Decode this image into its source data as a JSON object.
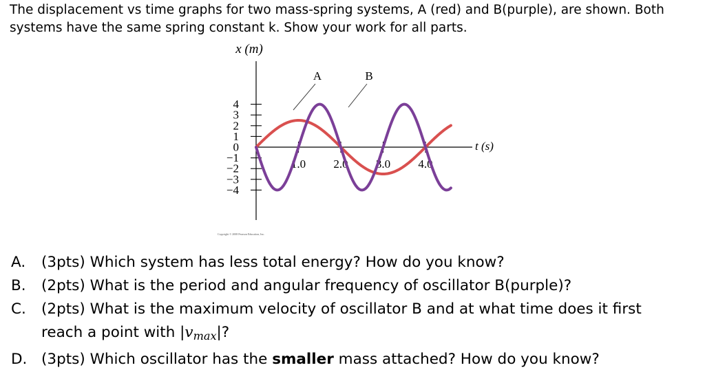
{
  "intro": {
    "line1": "The displacement vs time graphs for two mass-spring systems, A (red) and B(purple), are shown.  Both",
    "line2": "systems have the same spring constant k.  Show your work for all parts."
  },
  "chart_data": {
    "type": "line",
    "ylabel": "x (m)",
    "xlabel": "t (s)",
    "y_ticks": [
      "4",
      "3",
      "2",
      "1",
      "0",
      "−1",
      "−2",
      "−3",
      "−4"
    ],
    "y_tick_values": [
      4,
      3,
      2,
      1,
      0,
      -1,
      -2,
      -3,
      -4
    ],
    "x_ticks": [
      "1.0",
      "2.0",
      "3.0",
      "4.0"
    ],
    "x_tick_values": [
      1.0,
      2.0,
      3.0,
      4.0
    ],
    "xlim": [
      -0.1,
      4.6
    ],
    "ylim": [
      -4.5,
      4.5
    ],
    "series": [
      {
        "name": "A",
        "color": "#d9504f",
        "amplitude": 2.5,
        "period": 4.0,
        "x": [
          0,
          0.25,
          0.5,
          0.75,
          1.0,
          1.25,
          1.5,
          1.75,
          2.0,
          2.25,
          2.5,
          2.75,
          3.0,
          3.25,
          3.5,
          3.75,
          4.0,
          4.25,
          4.5
        ],
        "y": [
          0,
          0.96,
          1.77,
          2.31,
          2.5,
          2.31,
          1.77,
          0.96,
          0,
          -0.96,
          -1.77,
          -2.31,
          -2.5,
          -2.31,
          -1.77,
          -0.96,
          0,
          0.96,
          1.77
        ]
      },
      {
        "name": "B",
        "color": "#7b3f98",
        "amplitude": 4.0,
        "period": 2.0,
        "x": [
          0,
          0.25,
          0.5,
          0.75,
          1.0,
          1.25,
          1.5,
          1.75,
          2.0,
          2.25,
          2.5,
          2.75,
          3.0,
          3.25,
          3.5,
          3.75,
          4.0,
          4.25,
          4.5
        ],
        "y": [
          0,
          -2.83,
          -4,
          -2.83,
          0,
          2.83,
          4,
          2.83,
          0,
          -2.83,
          -4,
          -2.83,
          0,
          2.83,
          4,
          2.83,
          0,
          -2.83,
          -4
        ]
      }
    ],
    "annotations": [
      {
        "text": "A",
        "points_to": "A"
      },
      {
        "text": "B",
        "points_to": "B"
      }
    ],
    "copyright": "Copyright © 2008 Pearson Education, Inc."
  },
  "questions": [
    {
      "letter": "A.",
      "text": "(3pts) Which system has less total energy? How do you know?"
    },
    {
      "letter": "B.",
      "text": "(2pts) What is the period and angular frequency of oscillator B(purple)?"
    },
    {
      "letter": "C.",
      "text": "(2pts) What is the maximum velocity of oscillator B and at what time does it first",
      "line2_pre": "reach a point with |",
      "v": "v",
      "sub": "max",
      "line2_post": "|?"
    },
    {
      "letter": "D.",
      "text_pre": "(3pts) Which oscillator has the ",
      "bold": "smaller",
      "text_post": " mass attached? How do you know?"
    }
  ]
}
